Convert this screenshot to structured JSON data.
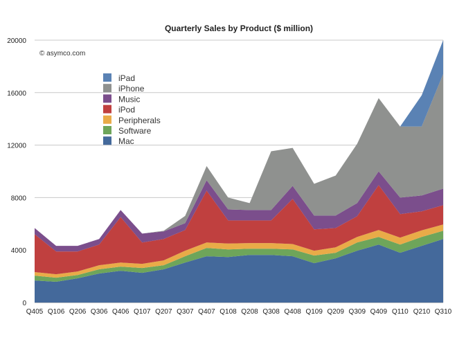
{
  "chart_data": {
    "type": "area",
    "stacked": true,
    "title": "Quarterly Sales by Product ($ million)",
    "credit": "© asymco.com",
    "xlabel": "",
    "ylabel": "",
    "ylim": [
      0,
      20000
    ],
    "yticks": [
      0,
      4000,
      8000,
      12000,
      16000,
      20000
    ],
    "grid": true,
    "legend_position": "top-left",
    "categories": [
      "Q405",
      "Q106",
      "Q206",
      "Q306",
      "Q406",
      "Q107",
      "Q207",
      "Q307",
      "Q407",
      "Q108",
      "Q208",
      "Q308",
      "Q408",
      "Q109",
      "Q209",
      "Q309",
      "Q409",
      "Q110",
      "Q210",
      "Q310"
    ],
    "series": [
      {
        "name": "Mac",
        "color": "#44699b",
        "values": [
          1680,
          1580,
          1850,
          2210,
          2420,
          2260,
          2530,
          3050,
          3530,
          3470,
          3630,
          3630,
          3530,
          3000,
          3370,
          3950,
          4420,
          3790,
          4320,
          4840
        ]
      },
      {
        "name": "Software",
        "color": "#6ea55a",
        "values": [
          370,
          310,
          250,
          320,
          320,
          370,
          310,
          480,
          630,
          580,
          470,
          470,
          520,
          580,
          420,
          630,
          580,
          630,
          680,
          630
        ]
      },
      {
        "name": "Peripherals",
        "color": "#e9ab48",
        "values": [
          270,
          270,
          270,
          310,
          310,
          320,
          370,
          420,
          420,
          450,
          430,
          430,
          410,
          370,
          420,
          420,
          530,
          530,
          500,
          480
        ]
      },
      {
        "name": "iPod",
        "color": "#c0403f",
        "values": [
          2890,
          1730,
          1520,
          1580,
          3470,
          1630,
          1630,
          1580,
          3950,
          1760,
          1730,
          1730,
          3440,
          1630,
          1470,
          1580,
          3420,
          1790,
          1450,
          1470
        ]
      },
      {
        "name": "Music",
        "color": "#7b4e8c",
        "values": [
          470,
          430,
          430,
          420,
          530,
          680,
          580,
          520,
          790,
          840,
          790,
          790,
          990,
          1050,
          950,
          1000,
          1050,
          1260,
          1210,
          1260
        ]
      },
      {
        "name": "iPhone",
        "color": "#8f918f",
        "values": [
          0,
          0,
          0,
          0,
          0,
          0,
          50,
          550,
          1080,
          900,
          530,
          4480,
          2900,
          2420,
          3050,
          4520,
          5580,
          5420,
          5260,
          8740
        ]
      },
      {
        "name": "iPad",
        "color": "#5a82b4",
        "values": [
          0,
          0,
          0,
          0,
          0,
          0,
          0,
          0,
          0,
          0,
          0,
          0,
          0,
          0,
          0,
          0,
          0,
          0,
          2370,
          2580
        ]
      }
    ]
  }
}
